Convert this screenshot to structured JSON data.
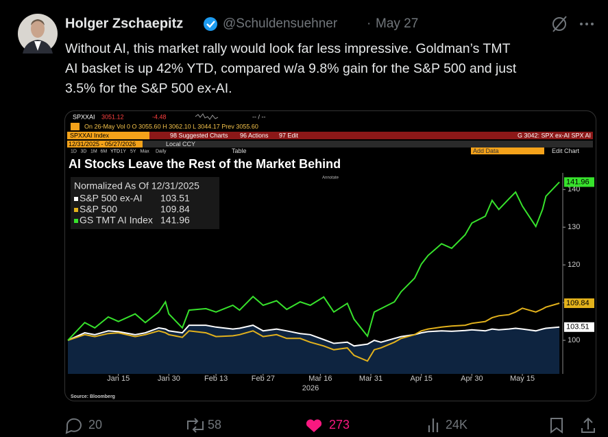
{
  "tweet": {
    "name": "Holger Zschaepitz",
    "handle": "@Schuldensuehner",
    "separator": "·",
    "date": "May 27",
    "text_lines": [
      "Without AI, this market rally would look far less impressive. Goldman’s TMT",
      "AI basket is up 42% YTD, compared w/a 9.8% gain for the S&P 500 and just",
      "3.5% for the S&P 500 ex-AI."
    ],
    "replies": "20",
    "reposts": "58",
    "likes": "273",
    "views": "24K"
  },
  "terminal": {
    "ticker": "SPXXAI",
    "price": "3051.12",
    "change": "-4.48",
    "quote_extra": "-- / --",
    "quote_row": "On 26-May Vol 0 O 3055.60 H 3062.10 L 3044.17 Prev 3055.60",
    "security": "SPXXAI Index",
    "menu": [
      "98 Suggested Charts",
      "96 Actions",
      "97 Edit"
    ],
    "chart_id": "G 3042: SPX ex-AI SPX AI",
    "date_range": "12/31/2025 - 05/27/2026",
    "currency": "Local CCY",
    "periods": [
      "1D",
      "3D",
      "1M",
      "6M",
      "YTD",
      "1Y",
      "5Y",
      "Max",
      "Daily"
    ],
    "table": "Table",
    "add_data": "Add Data",
    "edit_chart": "Edit Chart",
    "annotate": "Annotate",
    "source": "Source: Bloomberg"
  },
  "chart_data": {
    "type": "line",
    "title": "AI Stocks Leave the Rest of the Market Behind",
    "legend_title": "Normalized As Of 12/31/2025",
    "x": [
      "2025-12-31",
      "2026-01-05",
      "2026-01-08",
      "2026-01-12",
      "2026-01-15",
      "2026-01-20",
      "2026-01-23",
      "2026-01-27",
      "2026-01-29",
      "2026-01-30",
      "2026-02-03",
      "2026-02-05",
      "2026-02-10",
      "2026-02-13",
      "2026-02-18",
      "2026-02-20",
      "2026-02-24",
      "2026-02-27",
      "2026-03-03",
      "2026-03-06",
      "2026-03-10",
      "2026-03-13",
      "2026-03-17",
      "2026-03-20",
      "2026-03-24",
      "2026-03-26",
      "2026-03-30",
      "2026-04-01",
      "2026-04-03",
      "2026-04-07",
      "2026-04-09",
      "2026-04-13",
      "2026-04-15",
      "2026-04-17",
      "2026-04-21",
      "2026-04-24",
      "2026-04-28",
      "2026-04-30",
      "2026-05-04",
      "2026-05-06",
      "2026-05-08",
      "2026-05-11",
      "2026-05-13",
      "2026-05-15",
      "2026-05-19",
      "2026-05-21",
      "2026-05-22",
      "2026-05-26"
    ],
    "series": [
      {
        "name": "S&P 500 ex-AI",
        "color": "#ffffff",
        "fill": "#0e2440",
        "values": [
          100,
          102,
          101.5,
          102.5,
          102.3,
          101.5,
          102,
          103.3,
          103,
          102.5,
          102,
          104,
          104,
          103.5,
          103,
          103.2,
          104,
          102.5,
          103,
          102.5,
          101.8,
          101.5,
          100.2,
          99.2,
          99.5,
          98.5,
          99,
          100,
          99.5,
          100.5,
          101,
          101.5,
          102,
          102.3,
          102.5,
          102.4,
          102.6,
          102.8,
          102.5,
          103,
          102.8,
          103,
          103.2,
          103,
          102.5,
          103,
          103.2,
          103.51
        ]
      },
      {
        "name": "S&P 500",
        "color": "#e3b21c",
        "values": [
          100,
          101.5,
          101,
          101.8,
          102,
          101,
          101.5,
          102.5,
          102,
          101.5,
          100.8,
          102.5,
          102,
          101,
          101.2,
          101.5,
          102.5,
          101,
          101.5,
          100.5,
          100.5,
          99.5,
          98.5,
          97.5,
          98,
          96,
          94.5,
          97.5,
          98,
          99.5,
          100.5,
          101.5,
          102.5,
          103,
          103.5,
          103.8,
          104,
          104.5,
          105,
          106,
          106.5,
          106.8,
          107.5,
          108.5,
          107.5,
          108.3,
          108.8,
          109.84
        ]
      },
      {
        "name": "GS TMT AI Index",
        "color": "#37e22c",
        "values": [
          100,
          104.7,
          103.3,
          106.2,
          105,
          107,
          104.7,
          107.5,
          110.2,
          107,
          103.3,
          108,
          108.4,
          107.5,
          109.3,
          108,
          111.6,
          109.3,
          110.5,
          108.2,
          110.2,
          109.3,
          111.5,
          107.5,
          109.8,
          105.6,
          101.1,
          107.5,
          108.4,
          110.2,
          112.9,
          116.5,
          120.2,
          122.5,
          125.6,
          124.4,
          128,
          131.1,
          132.9,
          137.1,
          134.7,
          137.5,
          139.3,
          135.6,
          130.2,
          134.7,
          138.2,
          141.96
        ]
      }
    ],
    "xlim": [
      "2025-12-31",
      "2026-05-27"
    ],
    "xticks": [
      {
        "value": "2026-01-15",
        "label": "Jan 15"
      },
      {
        "value": "2026-01-30",
        "label": "Jan 30"
      },
      {
        "value": "2026-02-13",
        "label": "Feb 13"
      },
      {
        "value": "2026-02-27",
        "label": "Feb 27"
      },
      {
        "value": "2026-03-16",
        "label": "Mar 16"
      },
      {
        "value": "2026-03-31",
        "label": "Mar 31"
      },
      {
        "value": "2026-04-15",
        "label": "Apr 15"
      },
      {
        "value": "2026-04-30",
        "label": "Apr 30"
      },
      {
        "value": "2026-05-15",
        "label": "May 15"
      }
    ],
    "x_year": "2026",
    "ylim": [
      91.1,
      144.4
    ],
    "yticks": [
      100,
      110,
      120,
      130,
      140
    ],
    "grid": false
  }
}
